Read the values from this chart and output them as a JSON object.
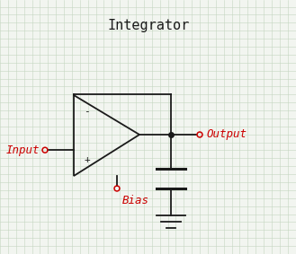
{
  "title": "Integrator",
  "title_fontsize": 11,
  "title_color": "#1a1a1a",
  "label_color": "#cc0000",
  "line_color": "#1a1a1a",
  "bg_color": "#f2f5f0",
  "grid_color": "#c5d5c0",
  "label_input": "Input",
  "label_output": "Output",
  "label_bias": "Bias",
  "label_minus": "-",
  "label_plus": "+"
}
